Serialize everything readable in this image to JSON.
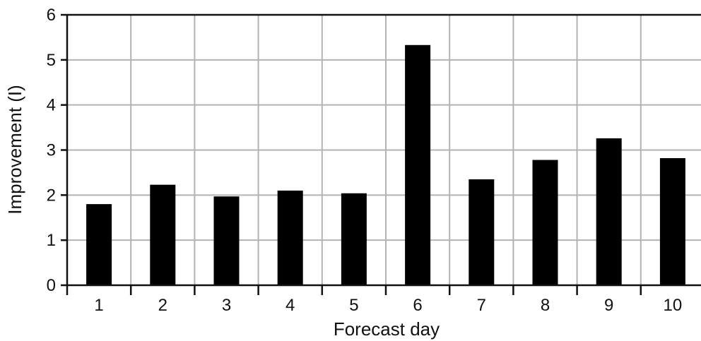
{
  "chart_data": {
    "type": "bar",
    "title": "",
    "xlabel": "Forecast day",
    "ylabel": "Improvement (I)",
    "categories": [
      "1",
      "2",
      "3",
      "4",
      "5",
      "6",
      "7",
      "8",
      "9",
      "10"
    ],
    "values": [
      1.8,
      2.23,
      1.97,
      2.1,
      2.04,
      5.33,
      2.35,
      2.78,
      3.26,
      2.82
    ],
    "ylim": [
      0,
      6
    ],
    "yticks": [
      "0",
      "1",
      "2",
      "3",
      "4",
      "5",
      "6"
    ],
    "grid": true,
    "bar_color": "#000000",
    "grid_color": "#b3b3b3",
    "axis_color": "#111111"
  }
}
